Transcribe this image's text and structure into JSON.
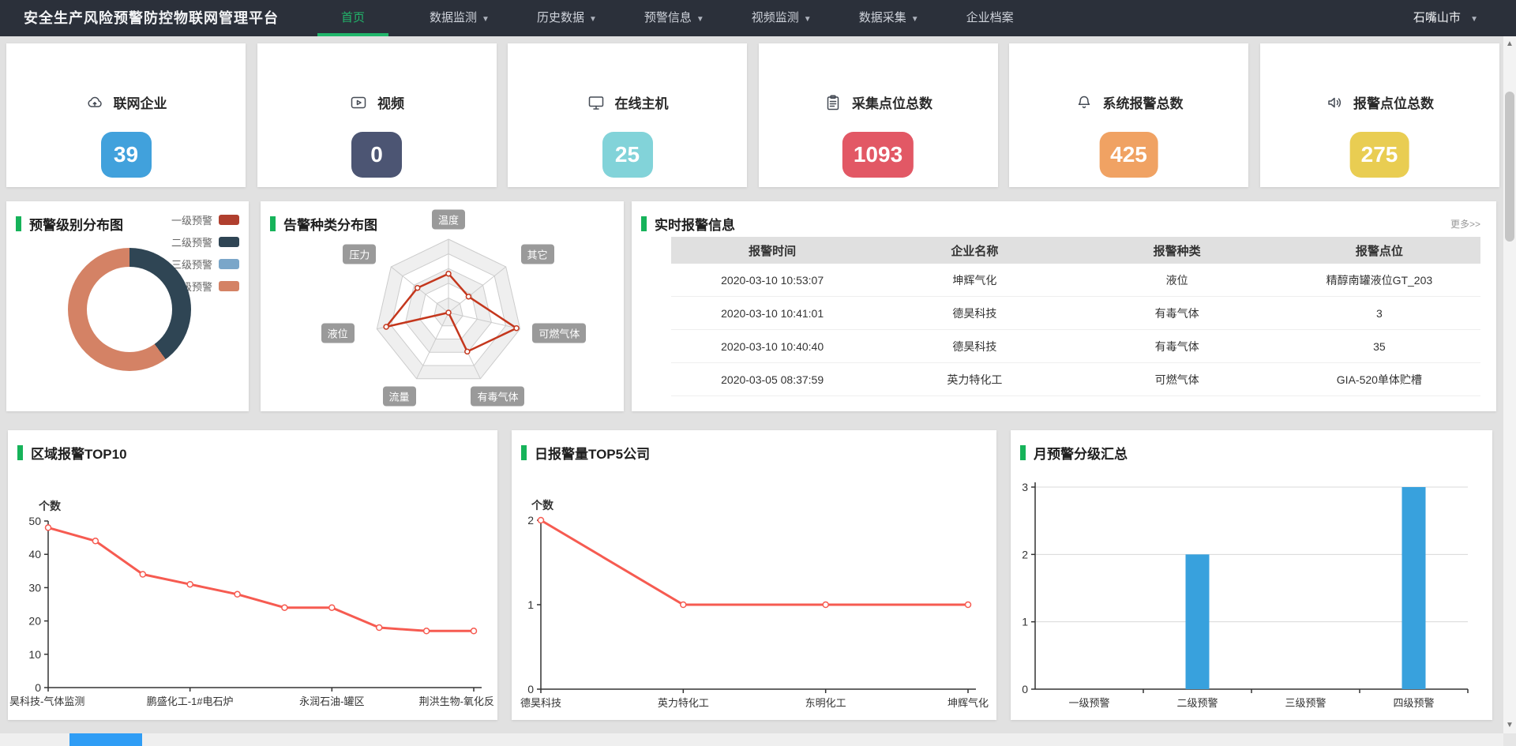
{
  "nav": {
    "title": "安全生产风险预警防控物联网管理平台",
    "items": [
      {
        "label": "首页",
        "active": true,
        "caret": false
      },
      {
        "label": "数据监测",
        "active": false,
        "caret": true
      },
      {
        "label": "历史数据",
        "active": false,
        "caret": true
      },
      {
        "label": "预警信息",
        "active": false,
        "caret": true
      },
      {
        "label": "视频监测",
        "active": false,
        "caret": true
      },
      {
        "label": "数据采集",
        "active": false,
        "caret": true
      },
      {
        "label": "企业档案",
        "active": false,
        "caret": false
      }
    ],
    "region": {
      "label": "石嘴山市"
    }
  },
  "stats": {
    "cards": [
      {
        "icon": "cloud-icon",
        "label": "联网企业",
        "value": "39",
        "color": "#41a1dc"
      },
      {
        "icon": "video-icon",
        "label": "视频",
        "value": "0",
        "color": "#4c5573"
      },
      {
        "icon": "monitor-icon",
        "label": "在线主机",
        "value": "25",
        "color": "#82d3d9"
      },
      {
        "icon": "clipboard-icon",
        "label": "采集点位总数",
        "value": "1093",
        "color": "#e25865"
      },
      {
        "icon": "bell-icon",
        "label": "系统报警总数",
        "value": "425",
        "color": "#f0a263"
      },
      {
        "icon": "speaker-icon",
        "label": "报警点位总数",
        "value": "275",
        "color": "#e9cd52"
      }
    ]
  },
  "panels": {
    "donut": {
      "title": "预警级别分布图"
    },
    "radar": {
      "title": "告警种类分布图"
    },
    "alarms": {
      "title": "实时报警信息",
      "more_label": "更多>>"
    },
    "region_top10": {
      "title": "区域报警TOP10"
    },
    "daily_top5": {
      "title": "日报警量TOP5公司"
    },
    "monthly": {
      "title": "月预警分级汇总"
    }
  },
  "alarm_table": {
    "headers": [
      "报警时间",
      "企业名称",
      "报警种类",
      "报警点位"
    ],
    "rows": [
      [
        "2020-03-10 10:53:07",
        "坤辉气化",
        "液位",
        "精醇南罐液位GT_203"
      ],
      [
        "2020-03-10 10:41:01",
        "德昊科技",
        "有毒气体",
        "3"
      ],
      [
        "2020-03-10 10:40:40",
        "德昊科技",
        "有毒气体",
        "35"
      ],
      [
        "2020-03-05 08:37:59",
        "英力特化工",
        "可燃气体",
        "GIA-520单体贮槽"
      ]
    ]
  },
  "chart_data": [
    {
      "id": "warning-level-donut",
      "type": "pie",
      "title": "预警级别分布图",
      "labels": [
        "一级预警",
        "二级预警",
        "三级预警",
        "四级预警"
      ],
      "values": [
        0,
        2,
        0,
        3
      ],
      "colors": [
        "#b03f2e",
        "#2f4554",
        "#7aa6c9",
        "#d48265"
      ],
      "inner_radius_ratio": 0.69,
      "legend_position": "top-right"
    },
    {
      "id": "alarm-type-radar",
      "type": "radar",
      "title": "告警种类分布图",
      "indicators": [
        "温度",
        "其它",
        "可燃气体",
        "有毒气体",
        "流量",
        "液位",
        "压力"
      ],
      "values_percent_of_max": [
        53,
        35,
        95,
        59,
        0,
        87,
        54
      ],
      "max": 100,
      "levels": 5,
      "line_color": "#c4371d"
    },
    {
      "id": "region-alarm-top10",
      "type": "line",
      "title": "区域报警TOP10",
      "ylabel": "个数",
      "yticks": [
        0,
        10,
        20,
        30,
        40,
        50
      ],
      "ylim": [
        0,
        50
      ],
      "values": [
        48,
        44,
        34,
        31,
        28,
        24,
        24,
        18,
        17,
        17
      ],
      "x_tick_labels": [
        "昊科技-气体监测",
        "鹏盛化工-1#电石炉",
        "永润石油-罐区",
        "荆洪生物-氧化反"
      ],
      "x_tick_indices": [
        0,
        3,
        6,
        9
      ],
      "line_color": "#f65b51",
      "grid": false
    },
    {
      "id": "daily-alarm-top5",
      "type": "line",
      "title": "日报警量TOP5公司",
      "ylabel": "个数",
      "yticks": [
        0,
        1,
        2
      ],
      "ylim": [
        0,
        2
      ],
      "categories": [
        "德昊科技",
        "英力特化工",
        "东明化工",
        "坤辉气化"
      ],
      "values": [
        2,
        1,
        1,
        1
      ],
      "line_color": "#f65b51",
      "grid": false
    },
    {
      "id": "monthly-warning-summary",
      "type": "bar",
      "title": "月预警分级汇总",
      "yticks": [
        0,
        1,
        2,
        3
      ],
      "ylim": [
        0,
        3
      ],
      "categories": [
        "一级预警",
        "二级预警",
        "三级预警",
        "四级预警"
      ],
      "values": [
        0,
        2,
        0,
        3
      ],
      "bar_color": "#38a1dd",
      "grid": true
    }
  ],
  "colors": {
    "accent_green": "#16b35a",
    "nav_bg": "#2b303a",
    "nav_active": "#21b66b",
    "page_bg": "#e1e1e1",
    "table_header_bg": "#e0e0e0",
    "scroll_thumb_blue": "#2f9df5"
  }
}
